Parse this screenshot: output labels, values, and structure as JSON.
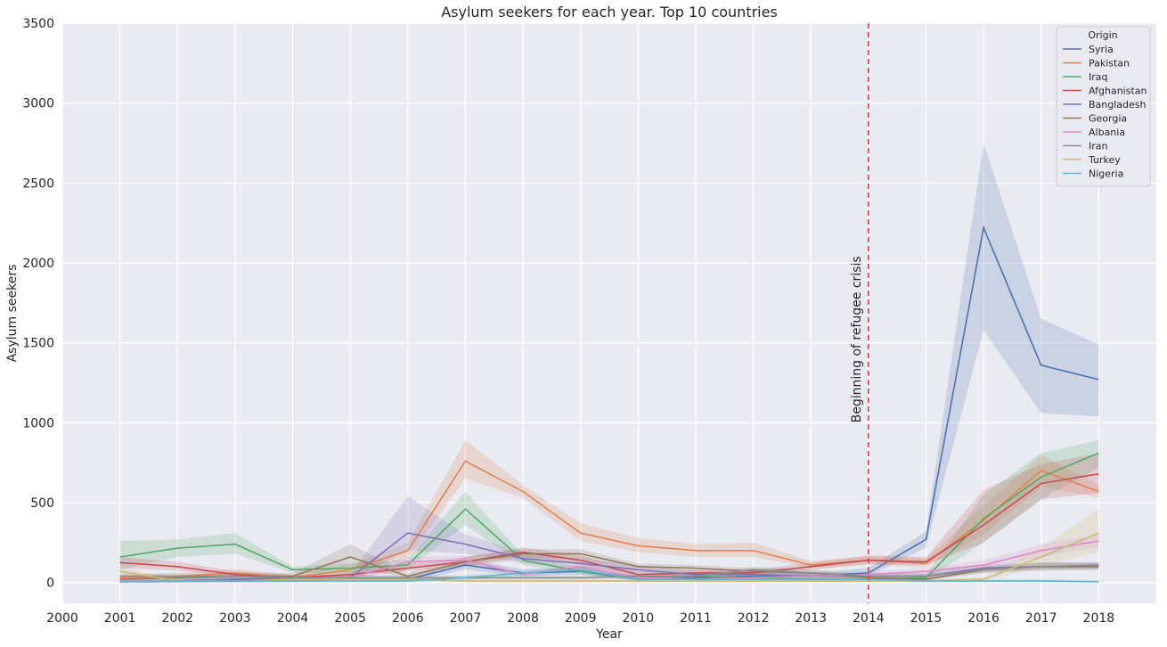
{
  "chart_data": {
    "type": "line",
    "title": "Asylum seekers for each year. Top 10 countries",
    "xlabel": "Year",
    "ylabel": "Asylum seekers",
    "xlim": [
      2000,
      2019
    ],
    "ylim": [
      -130,
      3500
    ],
    "x_ticks": [
      2000,
      2001,
      2002,
      2003,
      2004,
      2005,
      2006,
      2007,
      2008,
      2009,
      2010,
      2011,
      2012,
      2013,
      2014,
      2015,
      2016,
      2017,
      2018
    ],
    "y_ticks": [
      0,
      500,
      1000,
      1500,
      2000,
      2500,
      3000,
      3500
    ],
    "grid": true,
    "background": "#eaeaf2",
    "legend": {
      "title": "Origin",
      "placement": "top-right"
    },
    "annotation": {
      "text": "Beginning of refugee crisis",
      "x": 2014,
      "color": "#c44e52"
    },
    "x": [
      2001,
      2002,
      2003,
      2004,
      2005,
      2006,
      2007,
      2008,
      2009,
      2010,
      2011,
      2012,
      2013,
      2014,
      2015,
      2016,
      2017,
      2018
    ],
    "series": [
      {
        "name": "Syria",
        "color": "#4c72b0",
        "values": [
          5,
          10,
          20,
          20,
          30,
          20,
          110,
          60,
          70,
          20,
          30,
          40,
          40,
          60,
          270,
          2220,
          1360,
          1270
        ],
        "lower": [
          0,
          0,
          5,
          10,
          15,
          5,
          80,
          40,
          50,
          10,
          15,
          25,
          25,
          40,
          220,
          1580,
          1060,
          1040
        ],
        "upper": [
          15,
          25,
          35,
          35,
          50,
          40,
          140,
          85,
          95,
          35,
          45,
          60,
          60,
          90,
          320,
          2750,
          1650,
          1490
        ]
      },
      {
        "name": "Pakistan",
        "color": "#dd8452",
        "values": [
          30,
          40,
          60,
          30,
          80,
          200,
          760,
          570,
          310,
          230,
          200,
          200,
          110,
          140,
          120,
          390,
          700,
          570
        ],
        "lower": [
          15,
          25,
          40,
          15,
          55,
          150,
          650,
          530,
          260,
          190,
          160,
          160,
          90,
          115,
          95,
          300,
          600,
          530
        ],
        "upper": [
          50,
          60,
          85,
          50,
          110,
          250,
          890,
          610,
          370,
          280,
          240,
          250,
          135,
          165,
          150,
          480,
          800,
          610
        ]
      },
      {
        "name": "Iraq",
        "color": "#55a868",
        "values": [
          160,
          215,
          240,
          80,
          90,
          110,
          460,
          140,
          70,
          30,
          40,
          30,
          20,
          20,
          30,
          400,
          660,
          810
        ],
        "lower": [
          80,
          160,
          180,
          60,
          60,
          80,
          360,
          110,
          50,
          15,
          25,
          15,
          10,
          10,
          15,
          250,
          520,
          720
        ],
        "upper": [
          260,
          270,
          310,
          100,
          120,
          145,
          570,
          170,
          95,
          45,
          60,
          50,
          35,
          35,
          50,
          550,
          810,
          890
        ]
      },
      {
        "name": "Afghanistan",
        "color": "#c44e52",
        "values": [
          125,
          100,
          50,
          30,
          50,
          90,
          130,
          190,
          140,
          50,
          60,
          60,
          100,
          140,
          130,
          360,
          620,
          680
        ],
        "lower": [
          90,
          75,
          35,
          20,
          35,
          70,
          105,
          165,
          110,
          35,
          45,
          45,
          80,
          115,
          110,
          250,
          520,
          560
        ],
        "upper": [
          160,
          130,
          70,
          45,
          70,
          115,
          160,
          220,
          170,
          70,
          80,
          80,
          125,
          170,
          160,
          580,
          740,
          810
        ]
      },
      {
        "name": "Bangladesh",
        "color": "#8172b3",
        "values": [
          5,
          10,
          20,
          30,
          30,
          310,
          240,
          150,
          120,
          80,
          50,
          50,
          40,
          40,
          40,
          90,
          100,
          100
        ],
        "lower": [
          0,
          0,
          10,
          15,
          15,
          200,
          180,
          120,
          90,
          60,
          35,
          35,
          25,
          25,
          25,
          70,
          80,
          80
        ],
        "upper": [
          15,
          20,
          35,
          45,
          50,
          540,
          300,
          190,
          150,
          110,
          70,
          70,
          55,
          60,
          60,
          115,
          125,
          125
        ]
      },
      {
        "name": "Georgia",
        "color": "#937860",
        "values": [
          20,
          30,
          40,
          40,
          160,
          40,
          130,
          180,
          180,
          100,
          90,
          70,
          60,
          30,
          20,
          80,
          100,
          100
        ],
        "lower": [
          10,
          15,
          25,
          25,
          100,
          25,
          100,
          150,
          150,
          80,
          70,
          50,
          40,
          15,
          10,
          60,
          75,
          80
        ],
        "upper": [
          35,
          45,
          60,
          60,
          240,
          60,
          160,
          210,
          210,
          120,
          110,
          90,
          80,
          45,
          35,
          100,
          125,
          120
        ]
      },
      {
        "name": "Albania",
        "color": "#da8bc3",
        "values": [
          10,
          10,
          10,
          10,
          30,
          130,
          140,
          50,
          100,
          30,
          20,
          30,
          40,
          50,
          70,
          110,
          200,
          260
        ],
        "lower": [
          0,
          0,
          0,
          0,
          15,
          100,
          110,
          35,
          80,
          15,
          10,
          15,
          25,
          35,
          50,
          80,
          160,
          220
        ],
        "upper": [
          20,
          20,
          20,
          20,
          45,
          160,
          170,
          65,
          120,
          45,
          35,
          45,
          55,
          70,
          90,
          140,
          240,
          300
        ]
      },
      {
        "name": "Iran",
        "color": "#8c8c8c",
        "values": [
          40,
          40,
          40,
          30,
          30,
          30,
          30,
          30,
          30,
          40,
          40,
          80,
          60,
          40,
          40,
          80,
          100,
          110
        ],
        "lower": [
          25,
          25,
          25,
          20,
          20,
          20,
          20,
          20,
          20,
          25,
          25,
          60,
          45,
          25,
          25,
          60,
          80,
          90
        ],
        "upper": [
          55,
          55,
          55,
          45,
          45,
          45,
          45,
          45,
          45,
          55,
          55,
          100,
          80,
          55,
          55,
          100,
          125,
          130
        ]
      },
      {
        "name": "Turkey",
        "color": "#ccb974",
        "values": [
          70,
          10,
          10,
          20,
          20,
          20,
          10,
          10,
          10,
          10,
          10,
          10,
          10,
          10,
          10,
          20,
          160,
          310
        ],
        "lower": [
          40,
          0,
          0,
          10,
          10,
          10,
          0,
          0,
          0,
          0,
          0,
          0,
          0,
          0,
          0,
          10,
          100,
          190
        ],
        "upper": [
          100,
          20,
          20,
          30,
          30,
          30,
          20,
          20,
          20,
          20,
          20,
          20,
          20,
          20,
          20,
          35,
          220,
          460
        ]
      },
      {
        "name": "Nigeria",
        "color": "#64b5cd",
        "values": [
          5,
          10,
          10,
          10,
          10,
          10,
          30,
          60,
          80,
          20,
          20,
          20,
          20,
          20,
          10,
          10,
          10,
          5
        ],
        "lower": [
          0,
          0,
          0,
          0,
          0,
          0,
          15,
          45,
          60,
          10,
          10,
          10,
          10,
          10,
          0,
          0,
          0,
          0
        ],
        "upper": [
          15,
          20,
          20,
          20,
          20,
          20,
          45,
          75,
          100,
          30,
          30,
          30,
          30,
          30,
          20,
          20,
          20,
          15
        ]
      }
    ]
  }
}
